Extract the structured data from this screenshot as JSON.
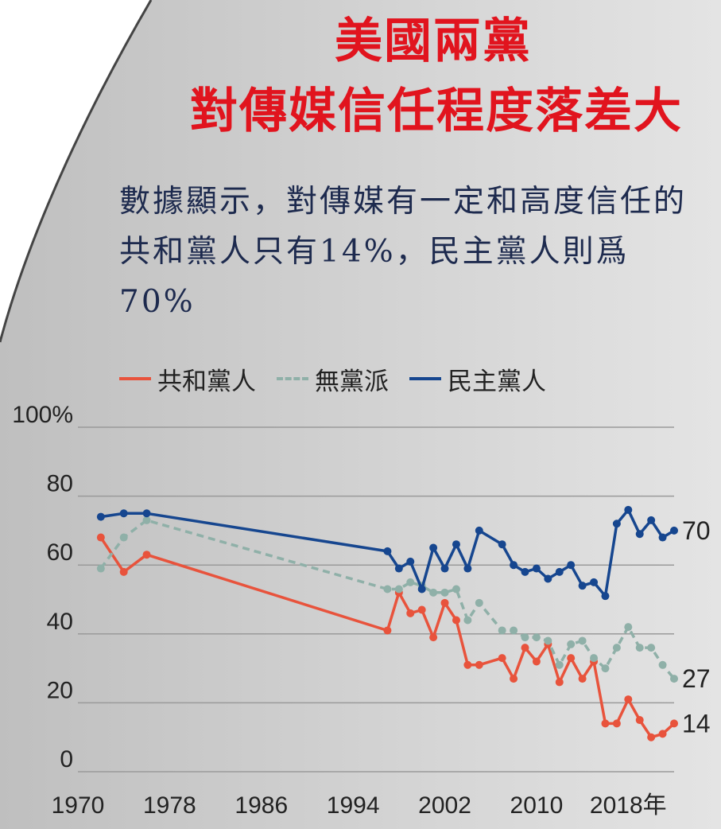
{
  "title_line1": "美國兩黨",
  "title_line2": "對傳媒信任程度落差大",
  "subtitle": "數據顯示，對傳媒有一定和高度信任的共和黨人只有14%，民主黨人則爲70%",
  "colors": {
    "republican": "#e8533c",
    "independent": "#8fb0a8",
    "democrat": "#16468f",
    "grid": "#9a9a9a",
    "title": "#e1141e",
    "panel": "#d6d6d6"
  },
  "chart_data": {
    "type": "line",
    "x_tick_labels": [
      "1970",
      "1978",
      "1986",
      "1994",
      "2002",
      "2010",
      "2018年"
    ],
    "x_ticks": [
      1970,
      1978,
      1986,
      1994,
      2002,
      2010,
      2018
    ],
    "y_tick_labels": [
      "100%",
      "80",
      "60",
      "40",
      "20",
      "0"
    ],
    "y_ticks": [
      100,
      80,
      60,
      40,
      20,
      0
    ],
    "xlim": [
      1970,
      2022
    ],
    "ylim": [
      0,
      100
    ],
    "grid": true,
    "legend_position": "top",
    "series": [
      {
        "name": "共和黨人",
        "style": "solid",
        "color_key": "republican",
        "markers": true,
        "end_label": "14",
        "points": [
          [
            1972,
            68
          ],
          [
            1974,
            58
          ],
          [
            1976,
            63
          ],
          [
            1997,
            41
          ],
          [
            1998,
            52
          ],
          [
            1999,
            46
          ],
          [
            2000,
            47
          ],
          [
            2001,
            39
          ],
          [
            2002,
            49
          ],
          [
            2003,
            44
          ],
          [
            2004,
            31
          ],
          [
            2005,
            31
          ],
          [
            2007,
            33
          ],
          [
            2008,
            27
          ],
          [
            2009,
            36
          ],
          [
            2010,
            32
          ],
          [
            2011,
            37
          ],
          [
            2012,
            26
          ],
          [
            2013,
            33
          ],
          [
            2014,
            27
          ],
          [
            2015,
            32
          ],
          [
            2016,
            14
          ],
          [
            2017,
            14
          ],
          [
            2018,
            21
          ],
          [
            2019,
            15
          ],
          [
            2020,
            10
          ],
          [
            2021,
            11
          ],
          [
            2022,
            14
          ]
        ]
      },
      {
        "name": "無黨派",
        "style": "dashed",
        "color_key": "independent",
        "markers": true,
        "end_label": "27",
        "points": [
          [
            1972,
            59
          ],
          [
            1974,
            68
          ],
          [
            1976,
            73
          ],
          [
            1997,
            53
          ],
          [
            1998,
            53
          ],
          [
            1999,
            55
          ],
          [
            2000,
            54
          ],
          [
            2001,
            52
          ],
          [
            2002,
            52
          ],
          [
            2003,
            53
          ],
          [
            2004,
            44
          ],
          [
            2005,
            49
          ],
          [
            2007,
            41
          ],
          [
            2008,
            41
          ],
          [
            2009,
            39
          ],
          [
            2010,
            39
          ],
          [
            2011,
            38
          ],
          [
            2012,
            31
          ],
          [
            2013,
            37
          ],
          [
            2014,
            38
          ],
          [
            2015,
            33
          ],
          [
            2016,
            30
          ],
          [
            2017,
            36
          ],
          [
            2018,
            42
          ],
          [
            2019,
            36
          ],
          [
            2020,
            36
          ],
          [
            2021,
            31
          ],
          [
            2022,
            27
          ]
        ]
      },
      {
        "name": "民主黨人",
        "style": "solid",
        "color_key": "democrat",
        "markers": true,
        "end_label": "70",
        "points": [
          [
            1972,
            74
          ],
          [
            1974,
            75
          ],
          [
            1976,
            75
          ],
          [
            1997,
            64
          ],
          [
            1998,
            59
          ],
          [
            1999,
            61
          ],
          [
            2000,
            53
          ],
          [
            2001,
            65
          ],
          [
            2002,
            59
          ],
          [
            2003,
            66
          ],
          [
            2004,
            59
          ],
          [
            2005,
            70
          ],
          [
            2007,
            66
          ],
          [
            2008,
            60
          ],
          [
            2009,
            58
          ],
          [
            2010,
            59
          ],
          [
            2011,
            56
          ],
          [
            2012,
            58
          ],
          [
            2013,
            60
          ],
          [
            2014,
            54
          ],
          [
            2015,
            55
          ],
          [
            2016,
            51
          ],
          [
            2017,
            72
          ],
          [
            2018,
            76
          ],
          [
            2019,
            69
          ],
          [
            2020,
            73
          ],
          [
            2021,
            68
          ],
          [
            2022,
            70
          ]
        ]
      }
    ]
  }
}
